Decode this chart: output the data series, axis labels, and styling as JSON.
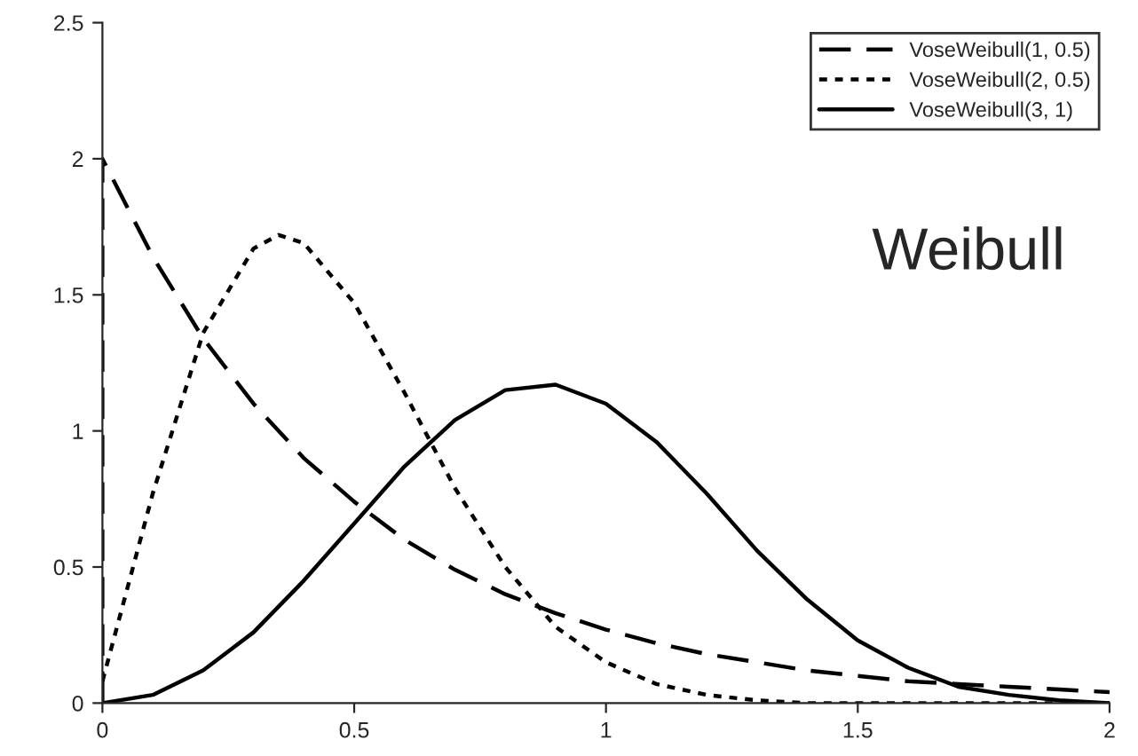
{
  "chart_data": {
    "type": "line",
    "xlim": [
      0,
      2
    ],
    "ylim": [
      0,
      2.5
    ],
    "xticks": [
      0,
      0.5,
      1,
      1.5,
      2
    ],
    "yticks": [
      0,
      0.5,
      1,
      1.5,
      2,
      2.5
    ],
    "grid": false,
    "legend": "top right",
    "annotations": [
      "Weibull"
    ],
    "series": [
      {
        "name": "VoseWeibull(1, 0.5)",
        "color": "#000000",
        "line_style": "dashed",
        "x": [
          0,
          0,
          0.1,
          0.2,
          0.3,
          0.4,
          0.5,
          0.6,
          0.7,
          0.8,
          0.9,
          1,
          1.1,
          1.2,
          1.3,
          1.4,
          1.5,
          1.6,
          1.7,
          1.8,
          1.9,
          2
        ],
        "values": [
          0,
          2,
          1.64,
          1.34,
          1.1,
          0.9,
          0.74,
          0.6,
          0.49,
          0.4,
          0.33,
          0.27,
          0.22,
          0.18,
          0.15,
          0.12,
          0.1,
          0.08,
          0.07,
          0.06,
          0.05,
          0.04
        ]
      },
      {
        "name": "VoseWeibull(2, 0.5)",
        "color": "#000000",
        "line_style": "dotted",
        "x": [
          0,
          0.1,
          0.2,
          0.3,
          0.35,
          0.4,
          0.5,
          0.6,
          0.7,
          0.8,
          0.9,
          1,
          1.1,
          1.2,
          1.3,
          1.4,
          1.5,
          1.6,
          1.8,
          2
        ],
        "values": [
          0.08,
          0.77,
          1.36,
          1.67,
          1.72,
          1.69,
          1.47,
          1.14,
          0.79,
          0.5,
          0.28,
          0.15,
          0.07,
          0.03,
          0.01,
          0,
          0,
          0,
          0,
          0
        ]
      },
      {
        "name": "VoseWeibull(3, 1)",
        "color": "#000000",
        "line_style": "solid",
        "x": [
          0,
          0.1,
          0.2,
          0.3,
          0.4,
          0.5,
          0.6,
          0.7,
          0.8,
          0.9,
          1,
          1.1,
          1.2,
          1.3,
          1.4,
          1.5,
          1.6,
          1.7,
          1.8,
          1.9,
          2
        ],
        "values": [
          0,
          0.03,
          0.12,
          0.26,
          0.45,
          0.66,
          0.87,
          1.04,
          1.15,
          1.17,
          1.1,
          0.96,
          0.77,
          0.56,
          0.38,
          0.23,
          0.13,
          0.06,
          0.03,
          0.01,
          0
        ]
      }
    ]
  }
}
